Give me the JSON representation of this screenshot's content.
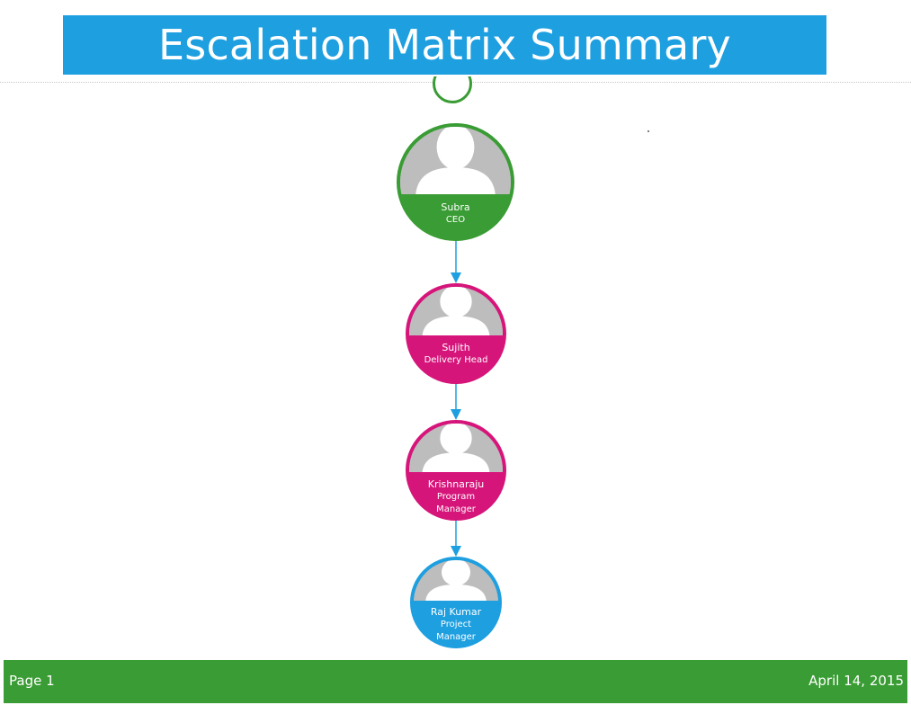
{
  "title": "Escalation Matrix Summary",
  "colors": {
    "banner": "#1e9fe0",
    "ceo": "#3a9c34",
    "middle_tier": "#d6157a",
    "project_manager": "#1e9fe0",
    "footer": "#3a9c34",
    "connector": "#1e9fe0"
  },
  "nodes": [
    {
      "name": "Subra",
      "role": "CEO",
      "icon": "person-silhouette-icon"
    },
    {
      "name": "Sujith",
      "role": "Delivery Head",
      "icon": "person-silhouette-icon"
    },
    {
      "name": "Krishnaraju",
      "role": "Program Manager",
      "icon": "person-silhouette-icon"
    },
    {
      "name": "Raj Kumar",
      "role": "Project Manager",
      "icon": "person-silhouette-icon"
    }
  ],
  "edges": [
    {
      "from": "Subra",
      "to": "Sujith"
    },
    {
      "from": "Sujith",
      "to": "Krishnaraju"
    },
    {
      "from": "Krishnaraju",
      "to": "Raj Kumar"
    }
  ],
  "footer": {
    "page_label": "Page 1",
    "date": "April 14, 2015"
  }
}
